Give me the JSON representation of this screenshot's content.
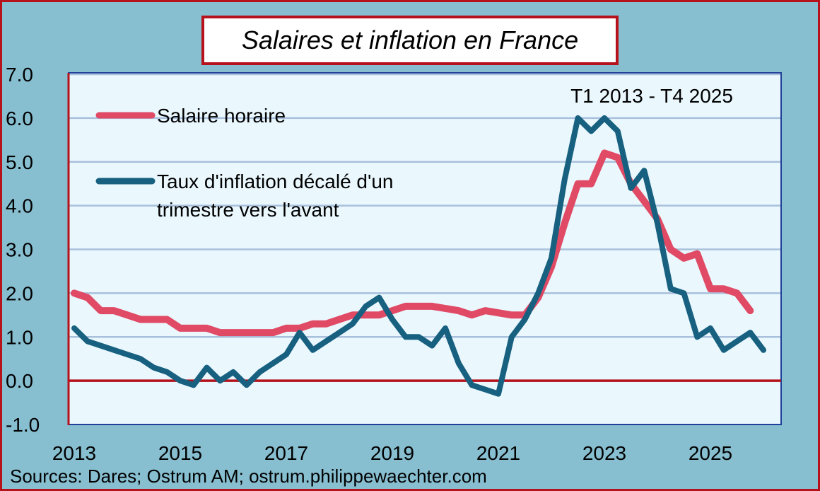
{
  "chart_data": {
    "type": "line",
    "title": "Salaires et inflation en France",
    "annotation": "T1 2013 - T4 2025",
    "source": "Sources: Dares; Ostrum AM; ostrum.philippewaechter.com",
    "xlabel": "",
    "ylabel": "",
    "ylim": [
      -1.0,
      7.0
    ],
    "yticks": [
      "7.0",
      "6.0",
      "5.0",
      "4.0",
      "3.0",
      "2.0",
      "1.0",
      "0.0",
      "-1.0"
    ],
    "ytick_values": [
      7,
      6,
      5,
      4,
      3,
      2,
      1,
      0,
      -1
    ],
    "xtick_labels": [
      "2013",
      "2015",
      "2017",
      "2019",
      "2021",
      "2023",
      "2025"
    ],
    "xtick_quarter_index": [
      0,
      8,
      16,
      24,
      32,
      40,
      48
    ],
    "x_start": "T1 2013",
    "grid": true,
    "legend_position": "top-left",
    "series": [
      {
        "name": "Salaire horaire",
        "color": "#e04a65",
        "values": [
          2.0,
          1.9,
          1.6,
          1.6,
          1.5,
          1.4,
          1.4,
          1.4,
          1.2,
          1.2,
          1.2,
          1.1,
          1.1,
          1.1,
          1.1,
          1.1,
          1.2,
          1.2,
          1.3,
          1.3,
          1.4,
          1.5,
          1.5,
          1.5,
          1.6,
          1.7,
          1.7,
          1.7,
          1.65,
          1.6,
          1.5,
          1.6,
          1.55,
          1.5,
          1.5,
          1.9,
          2.6,
          3.6,
          4.5,
          4.5,
          5.2,
          5.1,
          4.5,
          4.1,
          3.7,
          3.0,
          2.8,
          2.9,
          2.1,
          2.1,
          2.0,
          1.6
        ]
      },
      {
        "name": "Taux d'inflation décalé d'un trimestre vers l'avant",
        "legend_lines": [
          "Taux d'inflation décalé d'un",
          "trimestre vers l'avant"
        ],
        "color": "#17607f",
        "values": [
          1.2,
          0.9,
          0.8,
          0.7,
          0.6,
          0.5,
          0.3,
          0.2,
          0.0,
          -0.1,
          0.3,
          0.0,
          0.2,
          -0.1,
          0.2,
          0.4,
          0.6,
          1.1,
          0.7,
          0.9,
          1.1,
          1.3,
          1.7,
          1.9,
          1.4,
          1.0,
          1.0,
          0.8,
          1.2,
          0.4,
          -0.1,
          -0.2,
          -0.3,
          1.0,
          1.4,
          2.0,
          2.8,
          4.6,
          6.0,
          5.7,
          6.0,
          5.7,
          4.4,
          4.8,
          3.6,
          2.1,
          2.0,
          1.0,
          1.2,
          0.7,
          0.9,
          1.1,
          0.7
        ]
      }
    ]
  }
}
